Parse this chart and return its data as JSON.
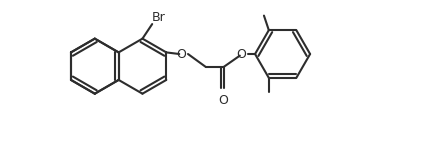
{
  "background_color": "#ffffff",
  "line_color": "#2d2d2d",
  "line_width": 1.5,
  "text_color": "#2d2d2d",
  "font_size": 9,
  "br_label": "Br",
  "o_labels": [
    "O",
    "O"
  ],
  "carbonyl_o": "O"
}
